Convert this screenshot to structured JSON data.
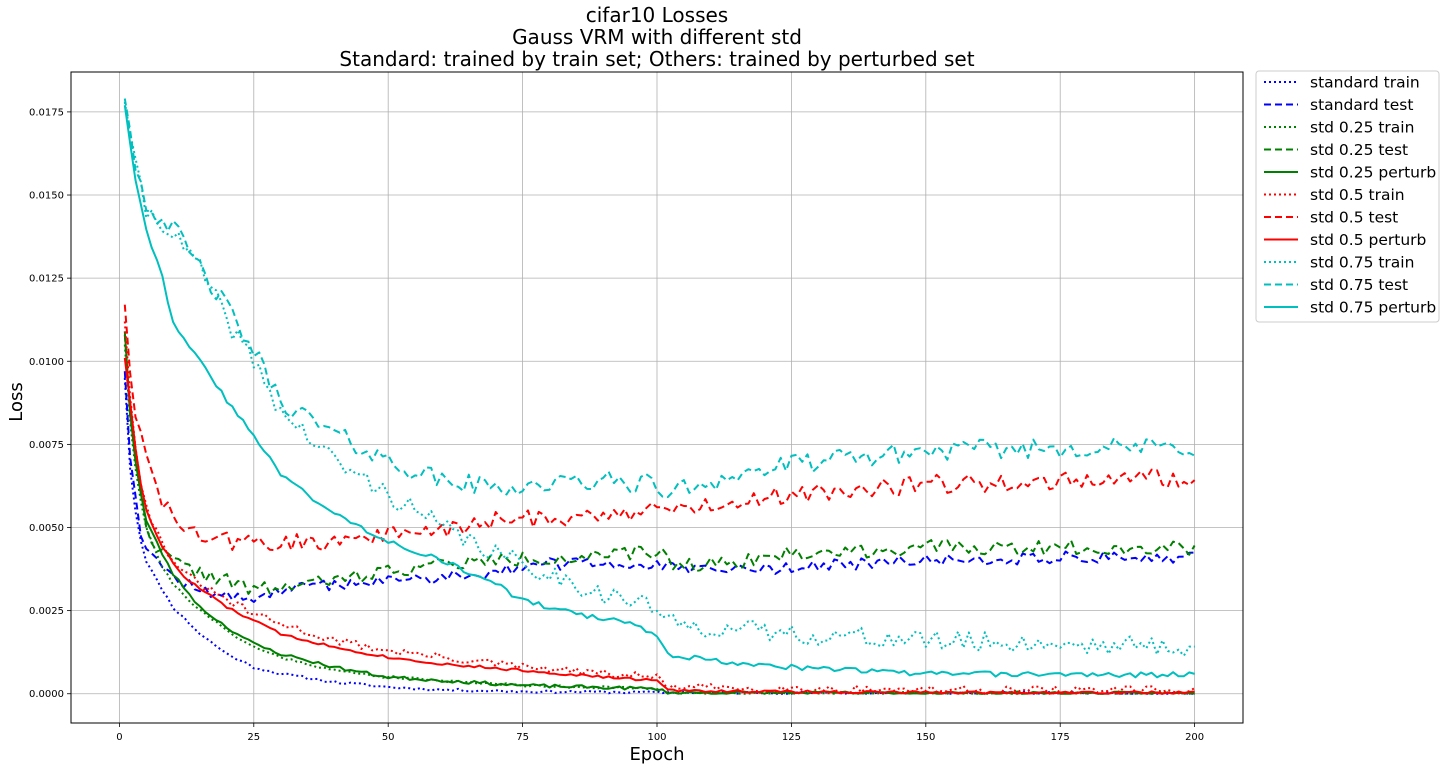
{
  "chart_data": {
    "type": "line",
    "title_lines": [
      "cifar10 Losses",
      "Gauss VRM with different std",
      "Standard: trained by train set; Others: trained by perturbed set"
    ],
    "xlabel": "Epoch",
    "ylabel": "Loss",
    "xlim": [
      -9,
      209
    ],
    "ylim": [
      -0.00088,
      0.0187
    ],
    "xticks": [
      0,
      25,
      50,
      75,
      100,
      125,
      150,
      175,
      200
    ],
    "yticks": [
      0.0,
      0.0025,
      0.005,
      0.0075,
      0.01,
      0.0125,
      0.015,
      0.0175
    ],
    "xtick_labels": [
      "0",
      "25",
      "50",
      "75",
      "100",
      "125",
      "150",
      "175",
      "200"
    ],
    "ytick_labels": [
      "0.0000",
      "0.0025",
      "0.0050",
      "0.0075",
      "0.0100",
      "0.0125",
      "0.0150",
      "0.0175"
    ],
    "grid": true,
    "legend_position": "outside-top-right",
    "colors": {
      "standard": "#0000ff",
      "std_0_25": "#008000",
      "std_0_5": "#ff0000",
      "std_0_75": "#00bfbf"
    },
    "series": [
      {
        "name": "standard train",
        "color": "#0000ff",
        "style": "dotted",
        "noise": 4e-05,
        "seed": 11,
        "points": [
          [
            1,
            0.0095
          ],
          [
            2,
            0.0068
          ],
          [
            3,
            0.0055
          ],
          [
            4,
            0.0046
          ],
          [
            5,
            0.004
          ],
          [
            7,
            0.0034
          ],
          [
            10,
            0.0026
          ],
          [
            15,
            0.0018
          ],
          [
            20,
            0.0012
          ],
          [
            25,
            0.0008
          ],
          [
            30,
            0.0006
          ],
          [
            40,
            0.00035
          ],
          [
            50,
            0.0002
          ],
          [
            60,
            0.00012
          ],
          [
            75,
            7e-05
          ],
          [
            100,
            4e-05
          ],
          [
            150,
            2e-05
          ],
          [
            200,
            1e-05
          ]
        ]
      },
      {
        "name": "standard test",
        "color": "#0000ff",
        "style": "dashed",
        "noise": 0.00018,
        "seed": 12,
        "points": [
          [
            1,
            0.0097
          ],
          [
            2,
            0.0072
          ],
          [
            3,
            0.006
          ],
          [
            4,
            0.0049
          ],
          [
            5,
            0.0045
          ],
          [
            8,
            0.0038
          ],
          [
            12,
            0.0033
          ],
          [
            20,
            0.0029
          ],
          [
            25,
            0.0029
          ],
          [
            30,
            0.0031
          ],
          [
            40,
            0.0033
          ],
          [
            50,
            0.0034
          ],
          [
            60,
            0.0035
          ],
          [
            70,
            0.0037
          ],
          [
            80,
            0.0039
          ],
          [
            90,
            0.0039
          ],
          [
            100,
            0.0039
          ],
          [
            103,
            0.00375
          ],
          [
            110,
            0.0037
          ],
          [
            125,
            0.0038
          ],
          [
            150,
            0.004
          ],
          [
            175,
            0.0041
          ],
          [
            200,
            0.0041
          ]
        ]
      },
      {
        "name": "std 0.25 train",
        "color": "#008000",
        "style": "dotted",
        "noise": 4e-05,
        "seed": 21,
        "points": [
          [
            1,
            0.0105
          ],
          [
            2,
            0.0082
          ],
          [
            3,
            0.0068
          ],
          [
            4,
            0.0058
          ],
          [
            5,
            0.005
          ],
          [
            8,
            0.0038
          ],
          [
            10,
            0.0033
          ],
          [
            15,
            0.0025
          ],
          [
            20,
            0.0019
          ],
          [
            25,
            0.0014
          ],
          [
            30,
            0.0011
          ],
          [
            40,
            0.0007
          ],
          [
            50,
            0.0005
          ],
          [
            60,
            0.0004
          ],
          [
            75,
            0.00025
          ],
          [
            100,
            0.00015
          ],
          [
            102,
            3e-05
          ],
          [
            200,
            1e-05
          ]
        ]
      },
      {
        "name": "std 0.25 test",
        "color": "#008000",
        "style": "dashed",
        "noise": 0.00022,
        "seed": 22,
        "points": [
          [
            1,
            0.0108
          ],
          [
            2,
            0.0085
          ],
          [
            3,
            0.0072
          ],
          [
            4,
            0.006
          ],
          [
            5,
            0.005
          ],
          [
            8,
            0.0042
          ],
          [
            12,
            0.0038
          ],
          [
            20,
            0.0034
          ],
          [
            25,
            0.0031
          ],
          [
            30,
            0.0032
          ],
          [
            40,
            0.0034
          ],
          [
            50,
            0.0037
          ],
          [
            60,
            0.0039
          ],
          [
            70,
            0.004
          ],
          [
            80,
            0.0041
          ],
          [
            90,
            0.0041
          ],
          [
            100,
            0.0043
          ],
          [
            103,
            0.0039
          ],
          [
            110,
            0.0039
          ],
          [
            125,
            0.0042
          ],
          [
            150,
            0.0044
          ],
          [
            175,
            0.0044
          ],
          [
            200,
            0.0044
          ]
        ]
      },
      {
        "name": "std 0.25 perturb",
        "color": "#008000",
        "style": "solid",
        "noise": 5e-05,
        "seed": 23,
        "points": [
          [
            1,
            0.0109
          ],
          [
            2,
            0.0085
          ],
          [
            3,
            0.007
          ],
          [
            4,
            0.006
          ],
          [
            5,
            0.0052
          ],
          [
            8,
            0.0042
          ],
          [
            10,
            0.0036
          ],
          [
            15,
            0.0026
          ],
          [
            20,
            0.002
          ],
          [
            25,
            0.0015
          ],
          [
            30,
            0.0012
          ],
          [
            40,
            0.0008
          ],
          [
            50,
            0.0005
          ],
          [
            60,
            0.0004
          ],
          [
            75,
            0.00025
          ],
          [
            100,
            0.00015
          ],
          [
            102,
            3e-05
          ],
          [
            200,
            1e-05
          ]
        ]
      },
      {
        "name": "std 0.5 train",
        "color": "#ff0000",
        "style": "dotted",
        "noise": 0.00012,
        "seed": 31,
        "points": [
          [
            1,
            0.0112
          ],
          [
            2,
            0.009
          ],
          [
            3,
            0.0075
          ],
          [
            4,
            0.0064
          ],
          [
            5,
            0.0056
          ],
          [
            8,
            0.0045
          ],
          [
            12,
            0.0036
          ],
          [
            20,
            0.0028
          ],
          [
            25,
            0.0024
          ],
          [
            30,
            0.0021
          ],
          [
            40,
            0.0016
          ],
          [
            50,
            0.0013
          ],
          [
            60,
            0.0011
          ],
          [
            75,
            0.0008
          ],
          [
            90,
            0.0006
          ],
          [
            100,
            0.0005
          ],
          [
            102,
            0.0002
          ],
          [
            125,
            0.00015
          ],
          [
            150,
            0.00012
          ],
          [
            200,
            0.0001
          ]
        ]
      },
      {
        "name": "std 0.5 test",
        "color": "#ff0000",
        "style": "dashed",
        "noise": 0.00028,
        "seed": 32,
        "points": [
          [
            1,
            0.0117
          ],
          [
            2,
            0.0098
          ],
          [
            3,
            0.0085
          ],
          [
            5,
            0.007
          ],
          [
            8,
            0.0058
          ],
          [
            10,
            0.0052
          ],
          [
            15,
            0.0047
          ],
          [
            20,
            0.0046
          ],
          [
            30,
            0.0045
          ],
          [
            40,
            0.0046
          ],
          [
            50,
            0.0048
          ],
          [
            60,
            0.0049
          ],
          [
            70,
            0.0052
          ],
          [
            80,
            0.0053
          ],
          [
            90,
            0.0054
          ],
          [
            100,
            0.0055
          ],
          [
            110,
            0.0057
          ],
          [
            125,
            0.006
          ],
          [
            150,
            0.0063
          ],
          [
            175,
            0.0064
          ],
          [
            200,
            0.0065
          ]
        ]
      },
      {
        "name": "std 0.5 perturb",
        "color": "#ff0000",
        "style": "solid",
        "noise": 4e-05,
        "seed": 33,
        "points": [
          [
            1,
            0.0101
          ],
          [
            2,
            0.0088
          ],
          [
            3,
            0.0074
          ],
          [
            4,
            0.0063
          ],
          [
            5,
            0.0055
          ],
          [
            8,
            0.0044
          ],
          [
            12,
            0.0035
          ],
          [
            20,
            0.0026
          ],
          [
            25,
            0.0022
          ],
          [
            30,
            0.0018
          ],
          [
            40,
            0.0014
          ],
          [
            50,
            0.0011
          ],
          [
            60,
            0.0009
          ],
          [
            75,
            0.0007
          ],
          [
            90,
            0.0005
          ],
          [
            100,
            0.0004
          ],
          [
            102,
            0.0001
          ],
          [
            125,
            6e-05
          ],
          [
            150,
            4e-05
          ],
          [
            200,
            3e-05
          ]
        ]
      },
      {
        "name": "std 0.75 train",
        "color": "#00bfbf",
        "style": "dotted",
        "noise": 0.0003,
        "seed": 41,
        "points": [
          [
            1,
            0.0178
          ],
          [
            2,
            0.017
          ],
          [
            3,
            0.0158
          ],
          [
            5,
            0.0145
          ],
          [
            8,
            0.0142
          ],
          [
            10,
            0.0138
          ],
          [
            15,
            0.0128
          ],
          [
            20,
            0.0112
          ],
          [
            25,
            0.01
          ],
          [
            30,
            0.0085
          ],
          [
            40,
            0.007
          ],
          [
            50,
            0.006
          ],
          [
            60,
            0.005
          ],
          [
            70,
            0.0042
          ],
          [
            80,
            0.0036
          ],
          [
            90,
            0.003
          ],
          [
            100,
            0.0026
          ],
          [
            102,
            0.0021
          ],
          [
            110,
            0.002
          ],
          [
            125,
            0.0018
          ],
          [
            150,
            0.0016
          ],
          [
            175,
            0.0015
          ],
          [
            200,
            0.0014
          ]
        ]
      },
      {
        "name": "std 0.75 test",
        "color": "#00bfbf",
        "style": "dashed",
        "noise": 0.0003,
        "seed": 42,
        "points": [
          [
            1,
            0.0179
          ],
          [
            2,
            0.0171
          ],
          [
            3,
            0.016
          ],
          [
            5,
            0.0147
          ],
          [
            8,
            0.0143
          ],
          [
            10,
            0.014
          ],
          [
            15,
            0.0128
          ],
          [
            20,
            0.0116
          ],
          [
            25,
            0.0103
          ],
          [
            30,
            0.0088
          ],
          [
            40,
            0.0078
          ],
          [
            50,
            0.007
          ],
          [
            60,
            0.0064
          ],
          [
            70,
            0.0062
          ],
          [
            80,
            0.0063
          ],
          [
            90,
            0.0064
          ],
          [
            100,
            0.0063
          ],
          [
            101,
            0.006
          ],
          [
            110,
            0.0064
          ],
          [
            125,
            0.0069
          ],
          [
            150,
            0.0073
          ],
          [
            175,
            0.0074
          ],
          [
            200,
            0.0074
          ]
        ]
      },
      {
        "name": "std 0.75 perturb",
        "color": "#00bfbf",
        "style": "solid",
        "noise": 8e-05,
        "seed": 43,
        "points": [
          [
            1,
            0.0177
          ],
          [
            3,
            0.0155
          ],
          [
            5,
            0.014
          ],
          [
            8,
            0.0125
          ],
          [
            10,
            0.0112
          ],
          [
            15,
            0.01
          ],
          [
            20,
            0.0088
          ],
          [
            25,
            0.0078
          ],
          [
            30,
            0.0066
          ],
          [
            35,
            0.006
          ],
          [
            40,
            0.0054
          ],
          [
            50,
            0.0046
          ],
          [
            60,
            0.004
          ],
          [
            70,
            0.0033
          ],
          [
            75,
            0.0028
          ],
          [
            85,
            0.0024
          ],
          [
            95,
            0.0021
          ],
          [
            100,
            0.0018
          ],
          [
            102,
            0.0012
          ],
          [
            110,
            0.001
          ],
          [
            125,
            0.0008
          ],
          [
            150,
            0.0006
          ],
          [
            175,
            0.00058
          ],
          [
            200,
            0.00057
          ]
        ]
      }
    ]
  }
}
